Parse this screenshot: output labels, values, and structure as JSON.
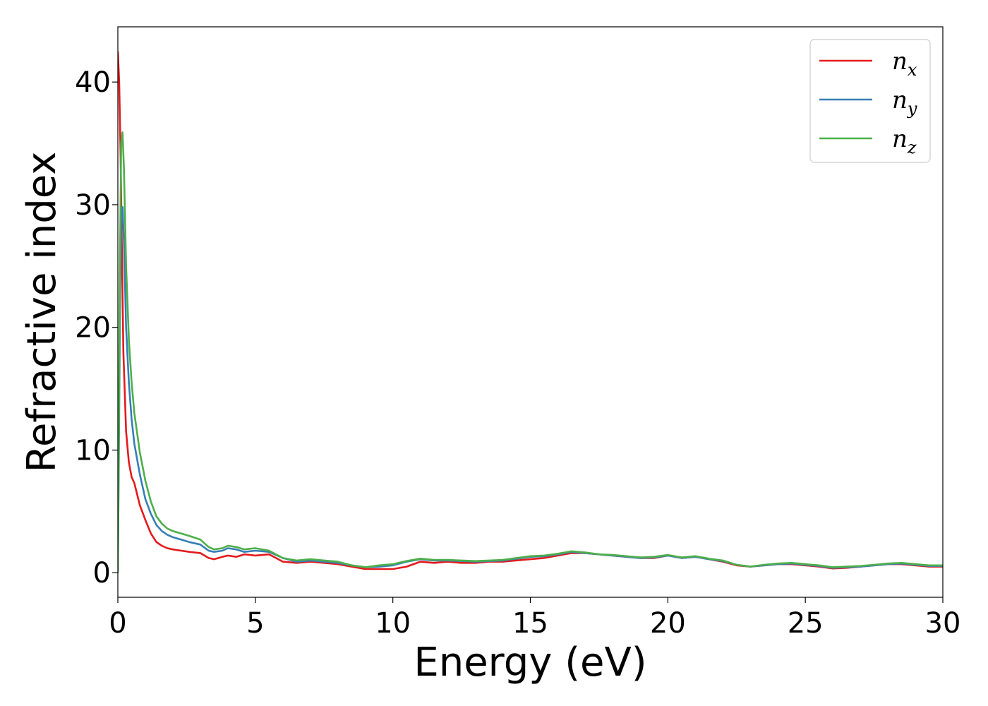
{
  "chart_data": {
    "type": "line",
    "xlabel": "Energy (eV)",
    "ylabel": "Refractive index",
    "xlim": [
      0,
      30
    ],
    "ylim": [
      -2,
      44.5
    ],
    "xticks": [
      0,
      5,
      10,
      15,
      20,
      25,
      30
    ],
    "yticks": [
      0,
      10,
      20,
      30,
      40
    ],
    "xtick_labels": [
      "0",
      "5",
      "10",
      "15",
      "20",
      "25",
      "30"
    ],
    "ytick_labels": [
      "0",
      "10",
      "20",
      "30",
      "40"
    ],
    "grid": false,
    "legend_position": "top-right",
    "series": [
      {
        "name": "n",
        "subscript": "x",
        "color": "#e41a1c",
        "x": [
          0,
          0.05,
          0.1,
          0.15,
          0.2,
          0.3,
          0.4,
          0.5,
          0.6,
          0.8,
          1.0,
          1.2,
          1.4,
          1.6,
          1.8,
          2.0,
          2.3,
          2.6,
          3.0,
          3.3,
          3.5,
          3.8,
          4.0,
          4.3,
          4.6,
          5.0,
          5.5,
          6.0,
          6.5,
          7.0,
          7.5,
          8.0,
          8.5,
          9.0,
          9.5,
          10.0,
          10.5,
          11.0,
          11.5,
          12.0,
          12.5,
          13.0,
          13.5,
          14.0,
          15.0,
          15.5,
          16.0,
          16.5,
          17.0,
          17.5,
          18.0,
          18.5,
          19.0,
          19.5,
          20.0,
          20.5,
          21.0,
          21.5,
          22.0,
          22.5,
          23.0,
          23.5,
          24.0,
          24.5,
          25.0,
          25.5,
          26.0,
          26.5,
          27.0,
          27.5,
          28.0,
          28.5,
          29.0,
          29.5,
          30.0
        ],
        "y": [
          42.5,
          40.0,
          34.0,
          26.0,
          18.0,
          11.5,
          9.0,
          7.8,
          7.3,
          5.5,
          4.3,
          3.2,
          2.5,
          2.2,
          2.0,
          1.9,
          1.8,
          1.7,
          1.6,
          1.2,
          1.1,
          1.3,
          1.4,
          1.3,
          1.5,
          1.4,
          1.5,
          0.9,
          0.8,
          0.9,
          0.8,
          0.7,
          0.5,
          0.3,
          0.3,
          0.3,
          0.5,
          0.9,
          0.8,
          0.9,
          0.8,
          0.8,
          0.9,
          0.9,
          1.1,
          1.2,
          1.4,
          1.6,
          1.6,
          1.5,
          1.4,
          1.3,
          1.2,
          1.2,
          1.4,
          1.2,
          1.3,
          1.1,
          0.9,
          0.6,
          0.5,
          0.6,
          0.7,
          0.7,
          0.6,
          0.5,
          0.35,
          0.4,
          0.5,
          0.6,
          0.7,
          0.7,
          0.6,
          0.5,
          0.5
        ]
      },
      {
        "name": "n",
        "subscript": "y",
        "color": "#377eb8",
        "x": [
          0,
          0.03,
          0.08,
          0.12,
          0.17,
          0.22,
          0.3,
          0.4,
          0.5,
          0.6,
          0.8,
          1.0,
          1.2,
          1.4,
          1.6,
          1.8,
          2.0,
          2.3,
          2.6,
          3.0,
          3.3,
          3.5,
          3.8,
          4.0,
          4.3,
          4.6,
          5.0,
          5.5,
          6.0,
          6.5,
          7.0,
          7.5,
          8.0,
          8.5,
          9.0,
          9.5,
          10.0,
          10.5,
          11.0,
          11.5,
          12.0,
          12.5,
          13.0,
          13.5,
          14.0,
          15.0,
          15.5,
          16.0,
          16.5,
          17.0,
          17.5,
          18.0,
          18.5,
          19.0,
          19.5,
          20.0,
          20.5,
          21.0,
          21.5,
          22.0,
          22.5,
          23.0,
          23.5,
          24.0,
          24.5,
          25.0,
          25.5,
          26.0,
          26.5,
          27.0,
          27.5,
          28.0,
          28.5,
          29.0,
          29.5,
          30.0
        ],
        "y": [
          0,
          8.0,
          22.0,
          29.5,
          29.8,
          27.0,
          20.0,
          15.5,
          12.5,
          10.5,
          8.0,
          6.0,
          4.8,
          3.9,
          3.4,
          3.1,
          2.9,
          2.7,
          2.5,
          2.3,
          1.8,
          1.7,
          1.8,
          2.0,
          1.9,
          1.7,
          1.8,
          1.7,
          1.2,
          0.9,
          1.0,
          0.9,
          0.8,
          0.6,
          0.45,
          0.5,
          0.6,
          0.9,
          1.1,
          1.0,
          1.0,
          0.95,
          0.9,
          0.95,
          1.0,
          1.3,
          1.35,
          1.5,
          1.7,
          1.6,
          1.5,
          1.4,
          1.3,
          1.2,
          1.25,
          1.4,
          1.2,
          1.3,
          1.1,
          0.95,
          0.65,
          0.5,
          0.6,
          0.7,
          0.75,
          0.65,
          0.55,
          0.4,
          0.45,
          0.5,
          0.6,
          0.7,
          0.75,
          0.65,
          0.55,
          0.55
        ]
      },
      {
        "name": "n",
        "subscript": "z",
        "color": "#4daf4a",
        "x": [
          0,
          0.03,
          0.08,
          0.12,
          0.17,
          0.22,
          0.3,
          0.4,
          0.5,
          0.6,
          0.8,
          1.0,
          1.2,
          1.4,
          1.6,
          1.8,
          2.0,
          2.3,
          2.6,
          3.0,
          3.3,
          3.5,
          3.8,
          4.0,
          4.3,
          4.6,
          5.0,
          5.5,
          6.0,
          6.5,
          7.0,
          7.5,
          8.0,
          8.5,
          9.0,
          9.5,
          10.0,
          10.5,
          11.0,
          11.5,
          12.0,
          12.5,
          13.0,
          13.5,
          14.0,
          15.0,
          15.5,
          16.0,
          16.5,
          17.0,
          17.5,
          18.0,
          18.5,
          19.0,
          19.5,
          20.0,
          20.5,
          21.0,
          21.5,
          22.0,
          22.5,
          23.0,
          23.5,
          24.0,
          24.5,
          25.0,
          25.5,
          26.0,
          26.5,
          27.0,
          27.5,
          28.0,
          28.5,
          29.0,
          29.5,
          30.0
        ],
        "y": [
          0,
          10.0,
          26.0,
          35.0,
          35.9,
          33.0,
          25.0,
          19.0,
          15.5,
          13.0,
          9.8,
          7.5,
          5.8,
          4.6,
          4.0,
          3.6,
          3.4,
          3.2,
          3.0,
          2.7,
          2.1,
          1.9,
          2.0,
          2.2,
          2.1,
          1.9,
          2.0,
          1.8,
          1.2,
          1.0,
          1.1,
          1.0,
          0.9,
          0.6,
          0.45,
          0.6,
          0.7,
          0.95,
          1.15,
          1.05,
          1.05,
          1.0,
          0.95,
          1.0,
          1.05,
          1.35,
          1.4,
          1.55,
          1.75,
          1.65,
          1.5,
          1.45,
          1.35,
          1.25,
          1.3,
          1.45,
          1.25,
          1.35,
          1.15,
          1.0,
          0.65,
          0.5,
          0.65,
          0.75,
          0.8,
          0.7,
          0.6,
          0.45,
          0.5,
          0.55,
          0.65,
          0.75,
          0.8,
          0.7,
          0.6,
          0.6
        ]
      }
    ]
  }
}
